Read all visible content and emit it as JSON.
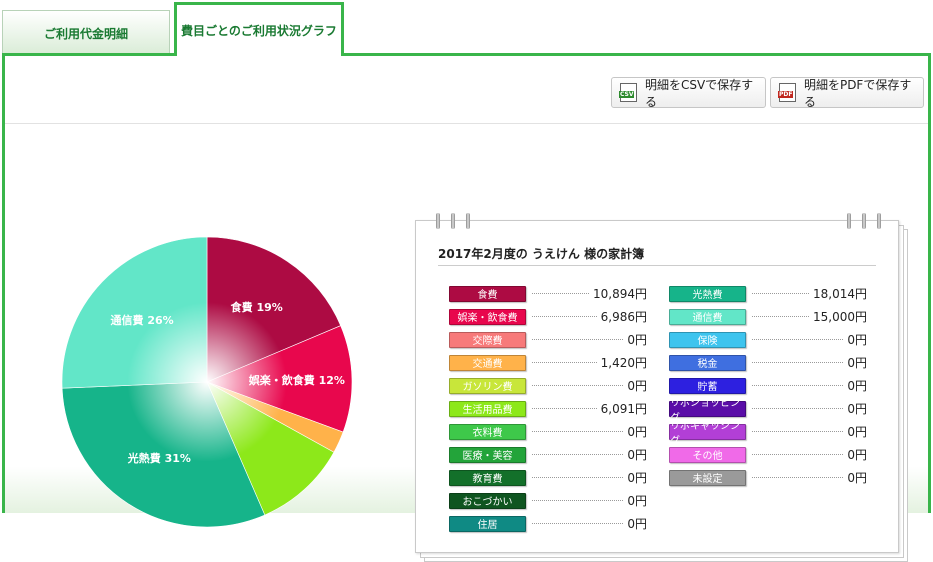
{
  "tabs": {
    "statement": "ご利用代金明細",
    "graph": "費目ごとのご利用状況グラフ"
  },
  "toolbar": {
    "csv_label": "明細をCSVで保存する",
    "pdf_label": "明細をPDFで保存する",
    "csv_icon_text": "CSV",
    "pdf_icon_text": "PDF"
  },
  "book": {
    "title": "2017年2月度の うえけん 様の家計簿"
  },
  "chart_data": {
    "type": "pie",
    "slices": [
      {
        "label": "食費",
        "percent_label": "19%",
        "value": 10894,
        "color": "#ad0b43"
      },
      {
        "label": "娯楽・飲食費",
        "percent_label": "12%",
        "value": 6986,
        "color": "#e8074d"
      },
      {
        "label": "交通費",
        "percent_label": "",
        "value": 1420,
        "color": "#ffb24a"
      },
      {
        "label": "生活用品費",
        "percent_label": "",
        "value": 6091,
        "color": "#8de81a"
      },
      {
        "label": "光熱費",
        "percent_label": "31%",
        "value": 18014,
        "color": "#16b48a"
      },
      {
        "label": "通信費",
        "percent_label": "26%",
        "value": 15000,
        "color": "#62e6c8"
      }
    ]
  },
  "ledger_left": [
    {
      "label": "食費",
      "amount": "10,894円",
      "color": "#ad0b43"
    },
    {
      "label": "娯楽・飲食費",
      "amount": "6,986円",
      "color": "#e8074d"
    },
    {
      "label": "交際費",
      "amount": "0円",
      "color": "#f77a7a"
    },
    {
      "label": "交通費",
      "amount": "1,420円",
      "color": "#ffb24a"
    },
    {
      "label": "ガソリン費",
      "amount": "0円",
      "color": "#c8e63a"
    },
    {
      "label": "生活用品費",
      "amount": "6,091円",
      "color": "#8de81a"
    },
    {
      "label": "衣料費",
      "amount": "0円",
      "color": "#3ec84a"
    },
    {
      "label": "医療・美容",
      "amount": "0円",
      "color": "#23a43a"
    },
    {
      "label": "教育費",
      "amount": "0円",
      "color": "#13702a"
    },
    {
      "label": "おこづかい",
      "amount": "0円",
      "color": "#0f5520"
    },
    {
      "label": "住居",
      "amount": "0円",
      "color": "#0f8a84"
    }
  ],
  "ledger_right": [
    {
      "label": "光熱費",
      "amount": "18,014円",
      "color": "#16b48a"
    },
    {
      "label": "通信費",
      "amount": "15,000円",
      "color": "#62e6c8"
    },
    {
      "label": "保険",
      "amount": "0円",
      "color": "#3ec4ee"
    },
    {
      "label": "税金",
      "amount": "0円",
      "color": "#3f6fe0"
    },
    {
      "label": "貯蓄",
      "amount": "0円",
      "color": "#2d20e0"
    },
    {
      "label": "リボショッピング",
      "amount": "0円",
      "color": "#5a0da8"
    },
    {
      "label": "リボキャッシング",
      "amount": "0円",
      "color": "#b23fd6"
    },
    {
      "label": "その他",
      "amount": "0円",
      "color": "#f06ae8"
    },
    {
      "label": "未設定",
      "amount": "0円",
      "color": "#9a9a9a"
    }
  ]
}
